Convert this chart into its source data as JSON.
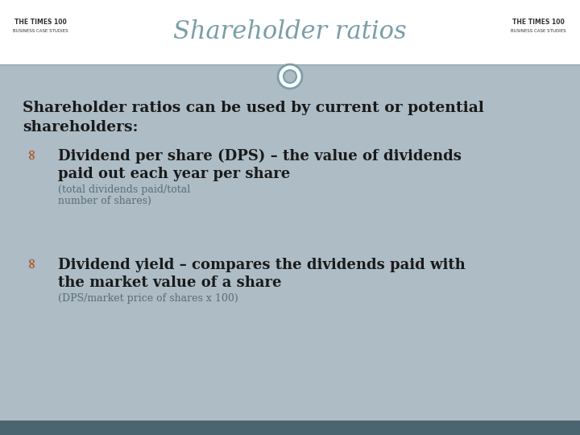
{
  "title": "Shareholder ratios",
  "title_color": "#7a9ea8",
  "bg_color": "#adbcc5",
  "header_bg": "#ffffff",
  "footer_bg": "#4a6570",
  "intro_text_line1": "Shareholder ratios can be used by current or potential",
  "intro_text_line2": "shareholders:",
  "bullet1_main_line1": "Dividend per share (DPS) – the value of dividends",
  "bullet1_main_line2": "paid out each year per share",
  "bullet1_sub": "(total dividends paid/total",
  "bullet1_sub2": "number of shares)",
  "bullet2_main_line1": "Dividend yield – compares the dividends paid with",
  "bullet2_main_line2": "the market value of a share",
  "bullet2_sub": "(DPS/market price of shares x 100)",
  "text_color": "#1a1a1a",
  "bullet_color": "#b05a30",
  "sub_text_color": "#5a6e75",
  "header_line_color": "#8faab0",
  "circle_color": "#7a9fa8",
  "logo_left_line1": "THE TIMES 100",
  "logo_left_line2": "BUSINESS CASE STUDIES",
  "logo_right_line1": "THE TIMES 100",
  "logo_right_line2": "BUSINESS CASE STUDIES"
}
